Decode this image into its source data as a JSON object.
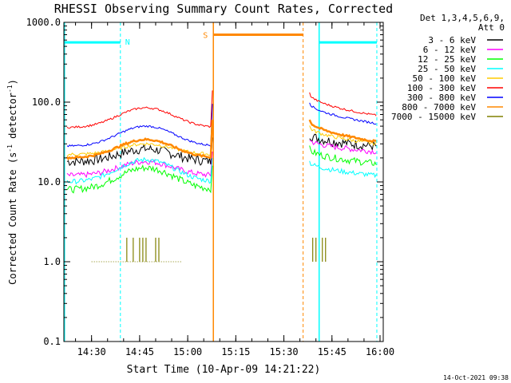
{
  "chart_data": {
    "type": "line",
    "title": "RHESSI Observing Summary Count Rates, Corrected",
    "xlabel": "Start Time (10-Apr-09 14:21:22)",
    "ylabel_main": "Corrected Count Rate (s",
    "ylabel_sup1": "-1",
    "ylabel_mid": " detector",
    "ylabel_sup2": "-1",
    "ylabel_end": ")",
    "yscale": "log",
    "ylim": [
      0.1,
      1000
    ],
    "xlim": [
      "14:21:22",
      "16:01"
    ],
    "x_ticks": [
      "14:30",
      "14:45",
      "15:00",
      "15:15",
      "15:30",
      "15:45",
      "16:00"
    ],
    "y_ticks": [
      "0.1",
      "1.0",
      "10.0",
      "100.0",
      "1000.0"
    ],
    "legend_header": [
      "Det 1,3,4,5,6,9,",
      "Att 0"
    ],
    "legend_position": "right",
    "footer": "14-Oct-2021 09:38",
    "annotations": {
      "night": "N",
      "saa": "S"
    },
    "series": [
      {
        "name": "3 - 6 keV",
        "color": "#000000"
      },
      {
        "name": "6 - 12 keV",
        "color": "#ff00ff"
      },
      {
        "name": "12 - 25 keV",
        "color": "#00ff00"
      },
      {
        "name": "25 - 50 keV",
        "color": "#00ffff"
      },
      {
        "name": "50 - 100 keV",
        "color": "#ffcc00"
      },
      {
        "name": "100 - 300 keV",
        "color": "#ff0000"
      },
      {
        "name": "300 - 800 keV",
        "color": "#0000ff"
      },
      {
        "name": "800 - 7000 keV",
        "color": "#ff8800"
      },
      {
        "name": "7000 - 15000 keV",
        "color": "#808000"
      }
    ]
  }
}
